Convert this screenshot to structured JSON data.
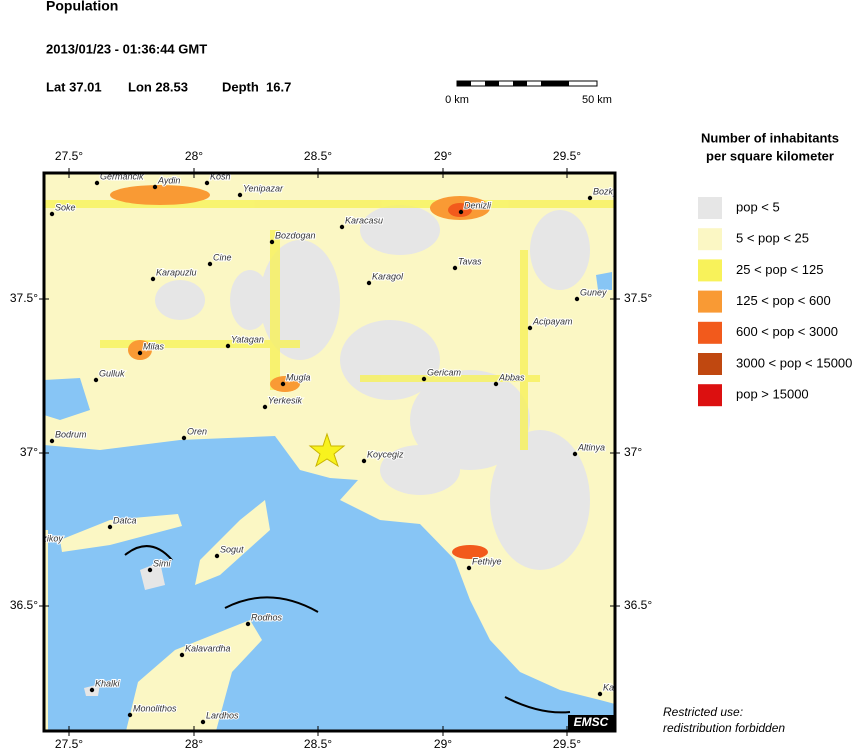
{
  "header": {
    "title": "Population",
    "datetime": "2013/01/23 - 01:36:44 GMT",
    "lat": "Lat 37.01",
    "lon": "Lon 28.53",
    "depth": "Depth  16.7"
  },
  "scale": {
    "start": "0 km",
    "end": "50 km"
  },
  "legend": {
    "title_lines": [
      "Number of inhabitants",
      "per square kilometer"
    ],
    "items": [
      {
        "label": "pop < 5",
        "color": "#e6e6e6"
      },
      {
        "label": "5 < pop < 25",
        "color": "#fbf7c4"
      },
      {
        "label": "25 < pop < 125",
        "color": "#f8f25a"
      },
      {
        "label": "125 < pop < 600",
        "color": "#f99a34"
      },
      {
        "label": "600 < pop < 3000",
        "color": "#f25a1c"
      },
      {
        "label": "3000 < pop < 15000",
        "color": "#c04810"
      },
      {
        "label": "pop > 15000",
        "color": "#dc1010"
      }
    ]
  },
  "map": {
    "lon_labels": [
      "27.5°",
      "28°",
      "28.5°",
      "29°",
      "29.5°"
    ],
    "lat_labels": [
      "37.5°",
      "37°",
      "36.5°"
    ],
    "towns": [
      "Germancik",
      "Aydin",
      "Kosh",
      "Yenipazar",
      "Soke",
      "Karacasu",
      "Denizli",
      "Bozky",
      "Cine",
      "Bozdogan",
      "Karapuzlu",
      "Karagol",
      "Tavas",
      "Guney",
      "Acipayam",
      "Milas",
      "Yatagan",
      "Gulluk",
      "Mugla",
      "Gericam",
      "Abbas",
      "Yerkesik",
      "Bodrum",
      "Oren",
      "Koycegiz",
      "Altinya",
      "Datca",
      "Yazikoy",
      "Simi",
      "Sogut",
      "Fethiye",
      "Rodhos",
      "Kalavardha",
      "Khalki",
      "Monolithos",
      "Lardhos",
      "Ka"
    ],
    "badge": "EMSC"
  },
  "notice": [
    "Restricted use:",
    "redistribution forbidden"
  ]
}
